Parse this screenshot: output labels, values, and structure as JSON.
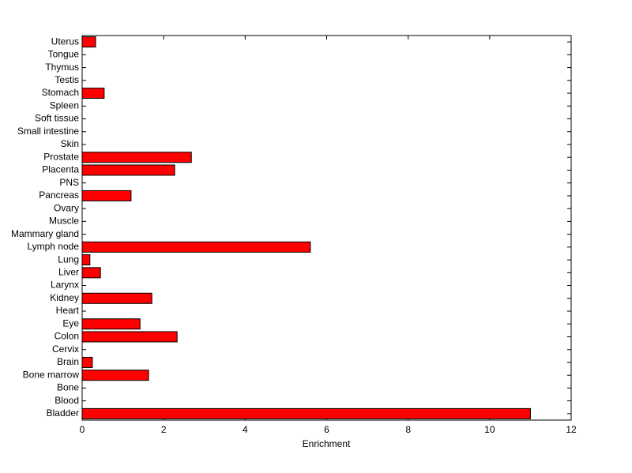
{
  "chart_data": {
    "type": "barh",
    "xlabel": "Enrichment",
    "categories": [
      "Bladder",
      "Blood",
      "Bone",
      "Bone marrow",
      "Brain",
      "Cervix",
      "Colon",
      "Eye",
      "Heart",
      "Kidney",
      "Larynx",
      "Liver",
      "Lung",
      "Lymph node",
      "Mammary gland",
      "Muscle",
      "Ovary",
      "Pancreas",
      "PNS",
      "Placenta",
      "Prostate",
      "Skin",
      "Small intestine",
      "Soft tissue",
      "Spleen",
      "Stomach",
      "Testis",
      "Thymus",
      "Tongue",
      "Uterus"
    ],
    "values": [
      11.0,
      0,
      0,
      1.63,
      0.25,
      0,
      2.33,
      1.42,
      0,
      1.71,
      0,
      0.45,
      0.19,
      5.6,
      0,
      0,
      0,
      1.2,
      0,
      2.27,
      2.68,
      0,
      0,
      0,
      0,
      0.54,
      0,
      0,
      0,
      0.33
    ],
    "color": "#ff0000",
    "xlim": [
      0,
      12
    ],
    "xticks": [
      0,
      2,
      4,
      6,
      8,
      10,
      12
    ]
  }
}
